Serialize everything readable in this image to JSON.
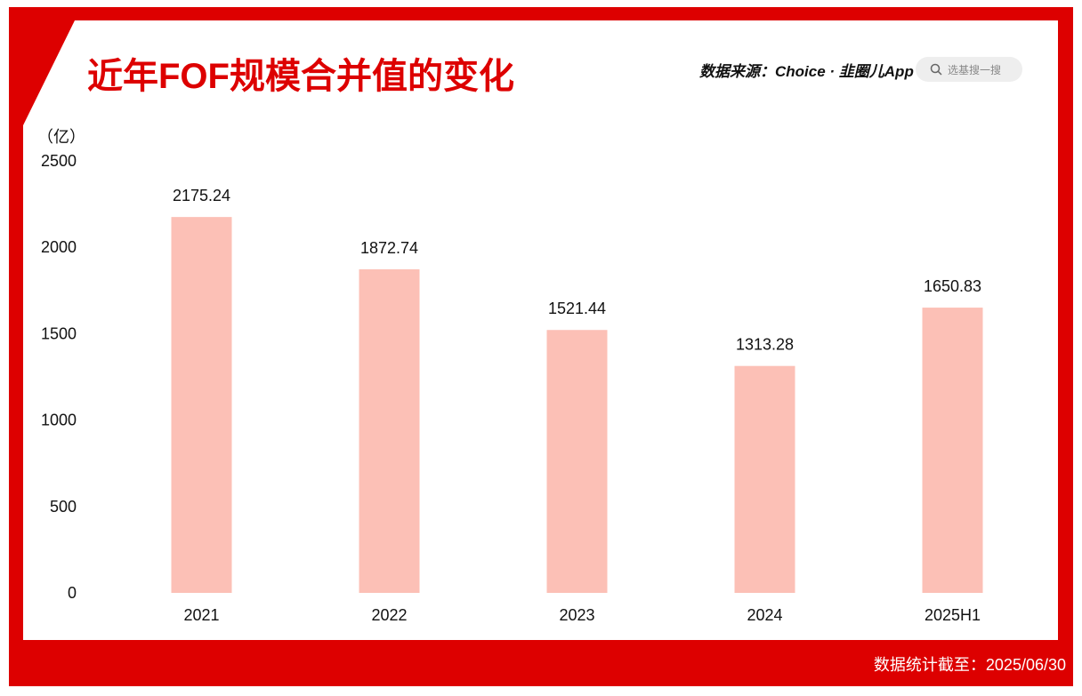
{
  "header": {
    "title": "近年FOF规模合并值的变化",
    "source": "数据来源：Choice · 韭圈儿App",
    "search_placeholder": "选基搜一搜"
  },
  "footer": {
    "note": "数据统计截至：2025/06/30"
  },
  "colors": {
    "brand_red": "#dd0000",
    "bar": "#fcc0b6",
    "text": "#111111"
  },
  "chart_data": {
    "type": "bar",
    "title": "近年FOF规模合并值的变化",
    "ylabel": "（亿）",
    "categories": [
      "2021",
      "2022",
      "2023",
      "2024",
      "2025H1"
    ],
    "values": [
      2175.24,
      1872.74,
      1521.44,
      1313.28,
      1650.83
    ],
    "value_labels": [
      "2175.24",
      "1872.74",
      "1521.44",
      "1313.28",
      "1650.83"
    ],
    "ylim": [
      0,
      2500
    ],
    "yticks": [
      0,
      500,
      1000,
      1500,
      2000,
      2500
    ],
    "grid": false,
    "legend": "none"
  }
}
